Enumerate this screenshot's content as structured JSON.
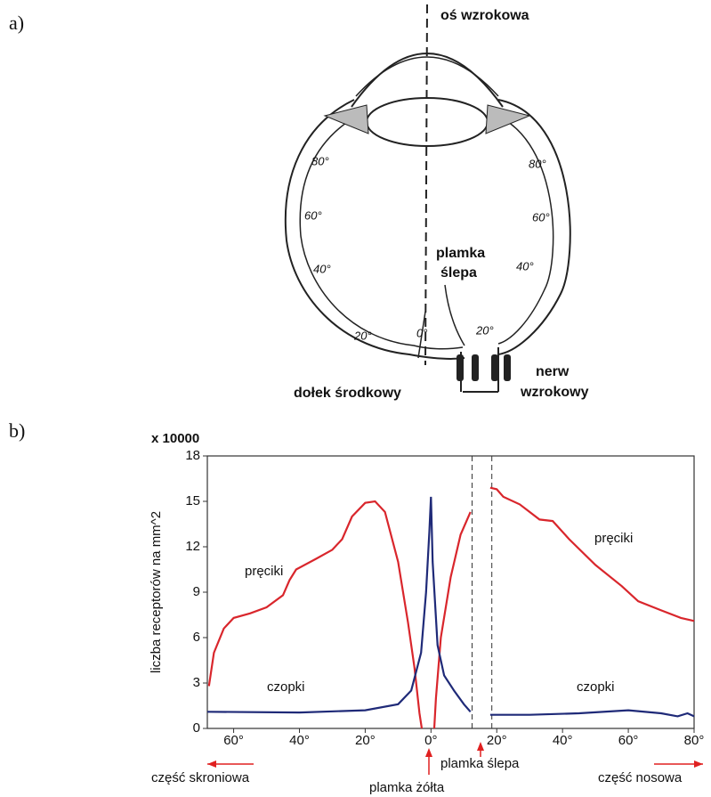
{
  "panels": {
    "a": "a)",
    "b": "b)"
  },
  "diagram": {
    "axis_label": "oś wzrokowa",
    "blind_spot": [
      "plamka",
      "ślepa"
    ],
    "fovea": "dołek środkowy",
    "nerve": [
      "nerw",
      "wzrokowy"
    ],
    "degrees": [
      "80°",
      "60°",
      "40°",
      "20°",
      "0°",
      "20°",
      "40°",
      "60°",
      "80°"
    ]
  },
  "chart_data": {
    "type": "line",
    "y_label": "liczba receptorów na mm^2",
    "y_multiplier": "x 10000",
    "xlim": [
      -68,
      80
    ],
    "ylim": [
      0,
      18
    ],
    "yticks": [
      0,
      3,
      6,
      9,
      12,
      15,
      18
    ],
    "xticks": [
      {
        "value": -60,
        "label": "60°"
      },
      {
        "value": -40,
        "label": "40°"
      },
      {
        "value": -20,
        "label": "20°"
      },
      {
        "value": 0,
        "label": "0°"
      },
      {
        "value": 20,
        "label": "20°"
      },
      {
        "value": 40,
        "label": "40°"
      },
      {
        "value": 60,
        "label": "60°"
      },
      {
        "value": 80,
        "label": "80°"
      }
    ],
    "blind_spot_x": [
      12.5,
      18.5
    ],
    "series": [
      {
        "name": "pręciki",
        "color": "#d9262c",
        "x": [
          -67.5,
          -66,
          -63,
          -60,
          -55,
          -50,
          -45,
          -43,
          -41,
          -35,
          -30,
          -27,
          -24,
          -20,
          -17,
          -14,
          -10,
          -7,
          -5,
          -3.5,
          -2.8,
          0,
          1,
          1.5,
          3,
          6,
          9,
          12,
          15,
          18,
          20,
          22,
          27,
          33,
          37,
          42,
          50,
          58,
          63,
          70,
          76,
          80
        ],
        "values": [
          2.8,
          5,
          6.6,
          7.3,
          7.6,
          8,
          8.8,
          9.8,
          10.5,
          11.2,
          11.8,
          12.5,
          14,
          14.9,
          15,
          14.3,
          11,
          7,
          4,
          1,
          0,
          null,
          0,
          2,
          6,
          10,
          12.8,
          14.3,
          null,
          15.9,
          15.8,
          15.3,
          14.8,
          13.8,
          13.7,
          12.5,
          10.8,
          9.4,
          8.4,
          7.8,
          7.3,
          7.1
        ]
      },
      {
        "name": "czopki",
        "color": "#1f2a78",
        "x": [
          -68,
          -40,
          -20,
          -10,
          -6,
          -3,
          -1.5,
          -0.5,
          0,
          0.5,
          2,
          4,
          7,
          10,
          12,
          15,
          18,
          30,
          45,
          60,
          70,
          75,
          78,
          80
        ],
        "values": [
          1.1,
          1.05,
          1.2,
          1.6,
          2.5,
          5,
          9,
          13,
          15.3,
          11,
          5.5,
          3.5,
          2.5,
          1.6,
          1.1,
          null,
          0.9,
          0.9,
          1.0,
          1.2,
          1.0,
          0.8,
          1.0,
          0.8
        ]
      }
    ],
    "annotations": [
      "pręciki",
      "pręciki",
      "czopki",
      "czopki",
      "część skroniowa",
      "plamka żółta",
      "plamka ślepa",
      "część nosowa"
    ]
  }
}
